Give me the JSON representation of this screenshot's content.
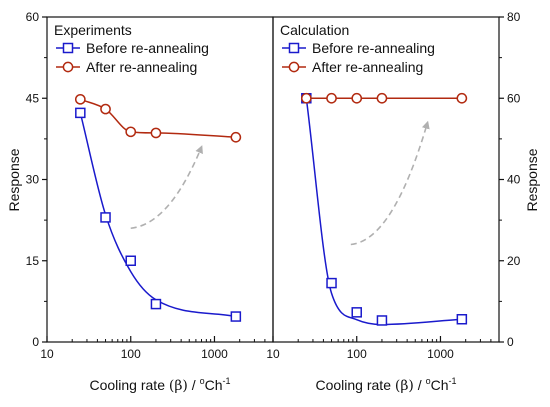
{
  "chart_data": [
    {
      "type": "line",
      "title": "Experiments",
      "xlabel_text": "Cooling rate",
      "xlabel_symbol": "(β)",
      "xlabel_sep": " / ",
      "xlabel_unit_deg": "o",
      "xlabel_unit_main": "Ch",
      "xlabel_unit_exp": "-1",
      "ylabel": "Response",
      "x_scale": "log",
      "xlim": [
        10,
        5000
      ],
      "ylim": [
        0,
        60
      ],
      "x_ticks": [
        10,
        100,
        1000
      ],
      "x_tick_labels": [
        "10",
        "100",
        "1000"
      ],
      "y_ticks": [
        0,
        15,
        30,
        45,
        60
      ],
      "y_tick_labels": [
        "0",
        "15",
        "30",
        "45",
        "60"
      ],
      "legend_position": "top-left",
      "series": [
        {
          "name": "Before re-annealing",
          "color": "#1a1acc",
          "marker": "square",
          "x": [
            25,
            50,
            100,
            200,
            1800
          ],
          "y": [
            42.3,
            23.0,
            15.0,
            7.0,
            4.7
          ],
          "fit_y": [
            42.3,
            23.5,
            13.0,
            7.8,
            4.7
          ]
        },
        {
          "name": "After re-annealing",
          "color": "#b22a10",
          "marker": "circle",
          "x": [
            25,
            50,
            100,
            200,
            1800
          ],
          "y": [
            44.8,
            43.0,
            38.8,
            38.6,
            37.8
          ],
          "fit_y": [
            44.8,
            43.0,
            38.8,
            38.6,
            37.8
          ]
        }
      ],
      "annotation": {
        "type": "dashed-arrow",
        "color": "#b0b0b0",
        "from": [
          100,
          21
        ],
        "to": [
          700,
          36
        ]
      }
    },
    {
      "type": "line",
      "title": "Calculation",
      "xlabel_text": "Cooling rate",
      "xlabel_symbol": "(β)",
      "xlabel_sep": " / ",
      "xlabel_unit_deg": "o",
      "xlabel_unit_main": "Ch",
      "xlabel_unit_exp": "-1",
      "ylabel": "Response",
      "x_scale": "log",
      "xlim": [
        10,
        5000
      ],
      "ylim": [
        0,
        80
      ],
      "x_ticks": [
        10,
        100,
        1000
      ],
      "x_tick_labels": [
        "10",
        "100",
        "1000"
      ],
      "y_ticks": [
        0,
        20,
        40,
        60,
        80
      ],
      "y_tick_labels": [
        "0",
        "20",
        "40",
        "60",
        "80"
      ],
      "legend_position": "top-left",
      "series": [
        {
          "name": "Before re-annealing",
          "color": "#1a1acc",
          "marker": "square",
          "x": [
            25,
            50,
            100,
            200,
            1800
          ],
          "y": [
            60.0,
            14.5,
            7.3,
            5.3,
            5.6
          ],
          "fit_y": [
            60.0,
            12.0,
            5.5,
            4.3,
            5.6
          ]
        },
        {
          "name": "After re-annealing",
          "color": "#b22a10",
          "marker": "circle",
          "x": [
            25,
            50,
            100,
            200,
            1800
          ],
          "y": [
            60.0,
            60.0,
            60.0,
            60.0,
            60.0
          ],
          "fit_y": [
            60.0,
            60.0,
            60.0,
            60.0,
            60.0
          ]
        }
      ],
      "annotation": {
        "type": "dashed-arrow",
        "color": "#b0b0b0",
        "from": [
          85,
          24
        ],
        "to": [
          700,
          54
        ]
      }
    }
  ]
}
